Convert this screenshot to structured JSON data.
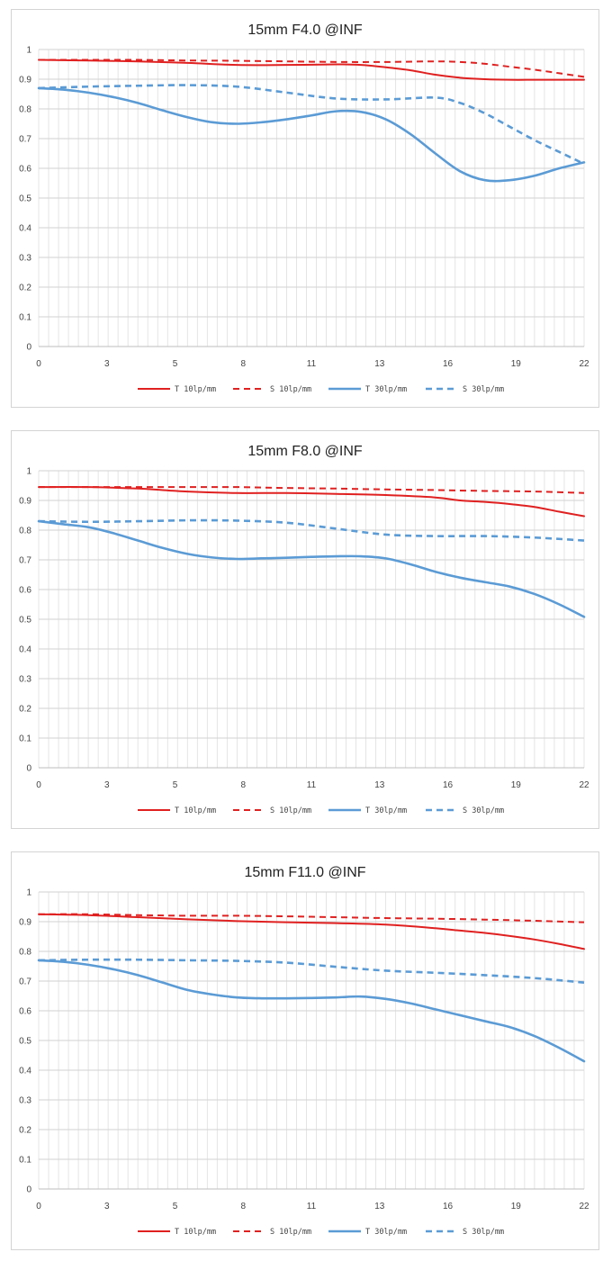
{
  "chart_data": [
    {
      "type": "line",
      "title": "15mm F4.0 @INF",
      "x_tick_labels": [
        "0",
        "3",
        "5",
        "8",
        "11",
        "13",
        "16",
        "19",
        "22"
      ],
      "y_tick_labels": [
        "0",
        "0.1",
        "0.2",
        "0.3",
        "0.4",
        "0.5",
        "0.6",
        "0.7",
        "0.8",
        "0.9",
        "1"
      ],
      "xlim": [
        0,
        22
      ],
      "ylim": [
        0,
        1
      ],
      "grid": true,
      "legend_position": "bottom",
      "series": [
        {
          "name": "T 10lp/mm",
          "color": "#e02020",
          "dash": false,
          "x": [
            0,
            2,
            4,
            6,
            8,
            10,
            12,
            13,
            14,
            15,
            16,
            17,
            18,
            19,
            20,
            21,
            22
          ],
          "y": [
            0.965,
            0.963,
            0.96,
            0.955,
            0.948,
            0.948,
            0.95,
            0.948,
            0.94,
            0.93,
            0.915,
            0.905,
            0.9,
            0.898,
            0.898,
            0.898,
            0.898
          ]
        },
        {
          "name": "S 10lp/mm",
          "color": "#e02020",
          "dash": true,
          "x": [
            0,
            2,
            4,
            6,
            8,
            10,
            12,
            14,
            16,
            17,
            18,
            19,
            20,
            21,
            22
          ],
          "y": [
            0.965,
            0.965,
            0.965,
            0.963,
            0.962,
            0.96,
            0.958,
            0.958,
            0.96,
            0.958,
            0.952,
            0.942,
            0.932,
            0.92,
            0.908
          ]
        },
        {
          "name": "T 30lp/mm",
          "color": "#5b9bd5",
          "dash": false,
          "x": [
            0,
            1,
            2,
            3,
            4,
            5,
            6,
            7,
            8,
            9,
            10,
            11,
            12,
            13,
            14,
            15,
            16,
            17,
            18,
            19,
            20,
            21,
            22
          ],
          "y": [
            0.87,
            0.865,
            0.855,
            0.84,
            0.82,
            0.795,
            0.772,
            0.755,
            0.75,
            0.755,
            0.765,
            0.778,
            0.792,
            0.79,
            0.765,
            0.715,
            0.65,
            0.59,
            0.56,
            0.56,
            0.575,
            0.6,
            0.62
          ]
        },
        {
          "name": "S 30lp/mm",
          "color": "#5b9bd5",
          "dash": true,
          "x": [
            0,
            2,
            4,
            6,
            8,
            10,
            12,
            14,
            16,
            17,
            18,
            19,
            20,
            21,
            22
          ],
          "y": [
            0.87,
            0.875,
            0.878,
            0.88,
            0.875,
            0.855,
            0.835,
            0.832,
            0.838,
            0.82,
            0.785,
            0.74,
            0.695,
            0.655,
            0.615
          ]
        }
      ]
    },
    {
      "type": "line",
      "title": "15mm F8.0 @INF",
      "x_tick_labels": [
        "0",
        "3",
        "5",
        "8",
        "11",
        "13",
        "16",
        "19",
        "22"
      ],
      "y_tick_labels": [
        "0",
        "0.1",
        "0.2",
        "0.3",
        "0.4",
        "0.5",
        "0.6",
        "0.7",
        "0.8",
        "0.9",
        "1"
      ],
      "xlim": [
        0,
        22
      ],
      "ylim": [
        0,
        1
      ],
      "grid": true,
      "legend_position": "bottom",
      "series": [
        {
          "name": "T 10lp/mm",
          "color": "#e02020",
          "dash": false,
          "x": [
            0,
            2,
            4,
            6,
            8,
            10,
            12,
            14,
            16,
            17,
            18,
            19,
            20,
            21,
            22
          ],
          "y": [
            0.945,
            0.945,
            0.94,
            0.93,
            0.925,
            0.925,
            0.922,
            0.918,
            0.91,
            0.9,
            0.895,
            0.888,
            0.878,
            0.862,
            0.847
          ]
        },
        {
          "name": "S 10lp/mm",
          "color": "#e02020",
          "dash": true,
          "x": [
            0,
            2,
            4,
            6,
            8,
            10,
            12,
            14,
            16,
            18,
            20,
            22
          ],
          "y": [
            0.945,
            0.945,
            0.945,
            0.945,
            0.945,
            0.942,
            0.94,
            0.937,
            0.935,
            0.932,
            0.93,
            0.925
          ]
        },
        {
          "name": "T 30lp/mm",
          "color": "#5b9bd5",
          "dash": false,
          "x": [
            0,
            1,
            2,
            3,
            4,
            5,
            6,
            7,
            8,
            9,
            10,
            11,
            12,
            13,
            14,
            15,
            16,
            17,
            18,
            19,
            20,
            21,
            22
          ],
          "y": [
            0.83,
            0.82,
            0.81,
            0.79,
            0.765,
            0.74,
            0.72,
            0.708,
            0.703,
            0.705,
            0.707,
            0.71,
            0.712,
            0.712,
            0.705,
            0.685,
            0.66,
            0.64,
            0.625,
            0.61,
            0.585,
            0.55,
            0.508
          ]
        },
        {
          "name": "S 30lp/mm",
          "color": "#5b9bd5",
          "dash": true,
          "x": [
            0,
            2,
            4,
            6,
            8,
            10,
            12,
            14,
            16,
            18,
            20,
            22
          ],
          "y": [
            0.83,
            0.828,
            0.83,
            0.833,
            0.832,
            0.825,
            0.805,
            0.785,
            0.78,
            0.78,
            0.775,
            0.765
          ]
        }
      ]
    },
    {
      "type": "line",
      "title": "15mm F11.0 @INF",
      "x_tick_labels": [
        "0",
        "3",
        "5",
        "8",
        "11",
        "13",
        "16",
        "19",
        "22"
      ],
      "y_tick_labels": [
        "0",
        "0.1",
        "0.2",
        "0.3",
        "0.4",
        "0.5",
        "0.6",
        "0.7",
        "0.8",
        "0.9",
        "1"
      ],
      "xlim": [
        0,
        22
      ],
      "ylim": [
        0,
        1
      ],
      "grid": true,
      "legend_position": "bottom",
      "series": [
        {
          "name": "T 10lp/mm",
          "color": "#e02020",
          "dash": false,
          "x": [
            0,
            2,
            4,
            6,
            8,
            10,
            12,
            14,
            16,
            17,
            18,
            19,
            20,
            21,
            22
          ],
          "y": [
            0.925,
            0.922,
            0.915,
            0.908,
            0.902,
            0.898,
            0.895,
            0.89,
            0.878,
            0.87,
            0.862,
            0.852,
            0.84,
            0.825,
            0.808
          ]
        },
        {
          "name": "S 10lp/mm",
          "color": "#e02020",
          "dash": true,
          "x": [
            0,
            2,
            4,
            6,
            8,
            10,
            12,
            14,
            16,
            18,
            20,
            22
          ],
          "y": [
            0.925,
            0.925,
            0.922,
            0.92,
            0.92,
            0.918,
            0.915,
            0.912,
            0.91,
            0.907,
            0.903,
            0.898
          ]
        },
        {
          "name": "T 30lp/mm",
          "color": "#5b9bd5",
          "dash": false,
          "x": [
            0,
            1,
            2,
            3,
            4,
            5,
            6,
            7,
            8,
            9,
            10,
            11,
            12,
            13,
            14,
            15,
            16,
            17,
            18,
            19,
            20,
            21,
            22
          ],
          "y": [
            0.77,
            0.765,
            0.755,
            0.74,
            0.72,
            0.695,
            0.67,
            0.655,
            0.645,
            0.642,
            0.642,
            0.643,
            0.645,
            0.648,
            0.64,
            0.625,
            0.605,
            0.585,
            0.565,
            0.545,
            0.515,
            0.475,
            0.43
          ]
        },
        {
          "name": "S 30lp/mm",
          "color": "#5b9bd5",
          "dash": true,
          "x": [
            0,
            2,
            4,
            6,
            8,
            10,
            12,
            14,
            16,
            18,
            20,
            22
          ],
          "y": [
            0.77,
            0.772,
            0.772,
            0.77,
            0.768,
            0.762,
            0.748,
            0.735,
            0.728,
            0.72,
            0.71,
            0.695
          ]
        }
      ]
    }
  ]
}
